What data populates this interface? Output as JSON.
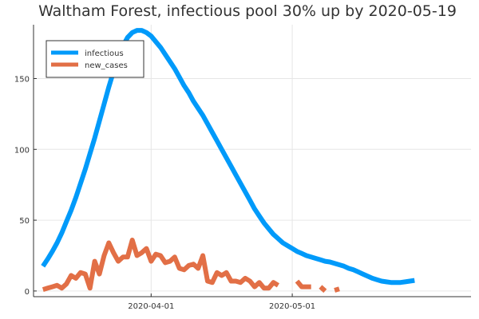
{
  "chart_data": {
    "type": "line",
    "title": "Waltham Forest, infectious pool 30% up by 2020-05-19",
    "xlabel": "",
    "ylabel": "",
    "x_start": "2020-03-09",
    "x_end": "2020-06-06",
    "xlim": [
      "2020-03-07",
      "2020-06-08"
    ],
    "ylim": [
      -4,
      188
    ],
    "x_ticks": [
      {
        "date": "2020-04-01",
        "label": "2020-04-01"
      },
      {
        "date": "2020-05-01",
        "label": "2020-05-01"
      }
    ],
    "y_ticks": [
      {
        "value": 0,
        "label": "0"
      },
      {
        "value": 50,
        "label": "50"
      },
      {
        "value": 100,
        "label": "100"
      },
      {
        "value": 150,
        "label": "150"
      }
    ],
    "grid": true,
    "legend_position": "top-left",
    "series": [
      {
        "name": "infectious",
        "color": "#009AFA",
        "values": [
          17.5,
          22.5,
          28,
          34,
          41,
          49,
          57,
          66,
          76,
          86,
          97,
          108,
          120,
          132,
          144,
          155,
          165,
          173,
          179,
          182.5,
          184,
          184,
          182.5,
          180,
          176,
          172,
          167,
          162,
          157,
          151,
          145,
          140,
          134,
          129,
          124,
          118,
          112,
          106,
          100,
          94,
          88,
          82,
          76,
          70,
          64,
          58,
          53,
          48,
          44,
          40,
          37,
          34,
          32,
          30,
          28,
          26.5,
          25,
          24,
          23,
          22,
          21,
          20.5,
          19.5,
          18.5,
          17.5,
          16,
          15,
          13.5,
          12,
          10.5,
          9,
          8,
          7,
          6.5,
          6,
          6,
          6,
          6.5,
          7,
          7.5
        ]
      },
      {
        "name": "new_cases",
        "color": "#E26F46",
        "values": [
          1,
          2,
          3,
          4,
          2,
          5,
          11,
          9,
          13,
          12,
          2,
          21,
          12,
          25,
          34,
          27,
          21,
          24,
          24,
          36,
          25,
          27,
          30,
          21,
          26,
          25,
          20,
          21,
          24,
          16,
          15,
          18,
          19,
          16,
          25,
          7,
          6,
          13,
          11,
          13,
          7,
          7,
          6,
          9,
          7,
          3,
          6,
          2,
          2,
          6,
          4,
          null,
          null,
          null,
          7,
          3,
          3,
          3,
          null,
          3,
          0,
          null,
          0.5,
          1.5,
          null,
          null,
          null,
          null,
          null,
          null,
          null,
          null,
          null,
          null,
          null,
          null,
          null,
          null,
          null,
          null
        ]
      }
    ]
  }
}
